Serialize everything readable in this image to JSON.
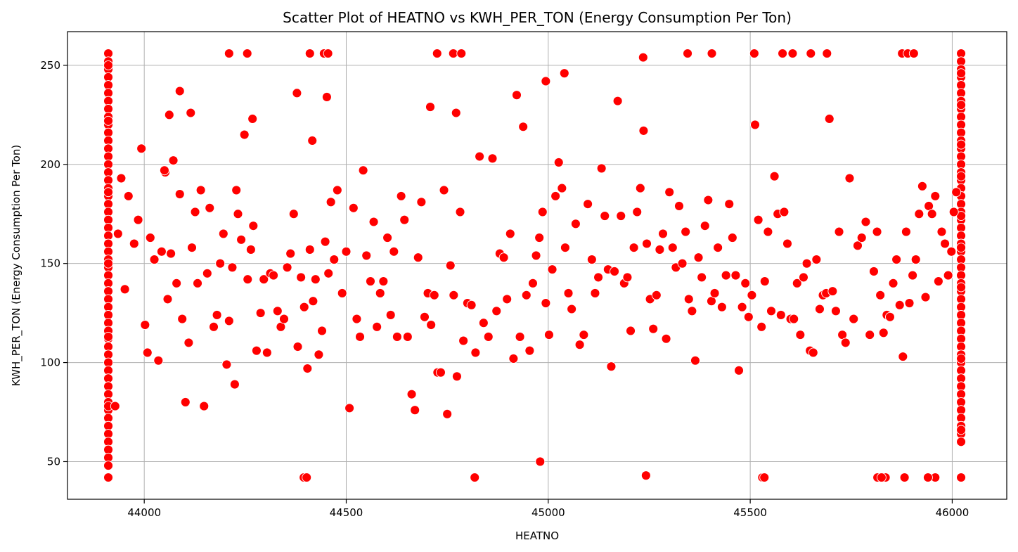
{
  "chart_data": {
    "type": "scatter",
    "title": "Scatter Plot of HEATNO vs KWH_PER_TON (Energy Consumption Per Ton)",
    "xlabel": "HEATNO",
    "ylabel": "KWH_PER_TON (Energy Consumption Per Ton)",
    "xlim": [
      43810,
      46135
    ],
    "ylim": [
      31,
      267
    ],
    "xticks": [
      44000,
      44500,
      45000,
      45500,
      46000
    ],
    "yticks": [
      50,
      100,
      150,
      200,
      250
    ],
    "grid": true,
    "legend": "none",
    "marker_color": "#ff0000",
    "marker_edge_color": "#ffffff",
    "series": [
      {
        "x": [
          43911,
          43911,
          43911,
          43911,
          43911,
          43911,
          43911,
          43911,
          43911,
          43911,
          43911,
          43911,
          43911,
          43911,
          43911,
          43911,
          43911,
          43911,
          43911,
          43911,
          43911,
          43911,
          43911,
          43911,
          43911,
          43911,
          43911,
          43911,
          43911,
          43911,
          43911,
          43911,
          43911,
          43911,
          43911,
          43911,
          43911,
          43911,
          43911,
          43911,
          43911,
          43911,
          43911,
          43911,
          43911,
          43911,
          43911,
          43911,
          43911,
          43911,
          43911,
          43911,
          43911,
          43911,
          43911,
          43911,
          43911,
          43911,
          43911,
          43911,
          46022,
          46022,
          46022,
          46022,
          46022,
          46022,
          46022,
          46022,
          46022,
          46022,
          46022,
          46022,
          46022,
          46022,
          46022,
          46022,
          46022,
          46022,
          46022,
          46022,
          46022,
          46022,
          46022,
          46022,
          46022,
          46022,
          46022,
          46022,
          46022,
          46022,
          46022,
          46022,
          46022,
          46022,
          46022,
          46022,
          46022,
          46022,
          46022,
          46022,
          46022,
          46022,
          46022,
          46022,
          46022,
          46022,
          46022,
          46022,
          46022,
          46022,
          46022,
          46022,
          46022,
          46022,
          46022,
          46022,
          46022,
          46022,
          46022,
          46022,
          43928,
          43935,
          43943,
          43952,
          43961,
          43975,
          43985,
          43993,
          44002,
          44008,
          44015,
          44025,
          44035,
          44043,
          44052,
          44058,
          44066,
          44072,
          44080,
          44088,
          44094,
          44102,
          44110,
          44118,
          44126,
          44132,
          44140,
          44148,
          44156,
          44162,
          44172,
          44180,
          44188,
          44196,
          44204,
          44210,
          44218,
          44224,
          44232,
          44240,
          44248,
          44256,
          44264,
          44270,
          44278,
          44288,
          44296,
          44304,
          44312,
          44320,
          44330,
          44338,
          44346,
          44354,
          44362,
          44370,
          44380,
          44388,
          44396,
          44404,
          44410,
          44418,
          44424,
          44432,
          44440,
          44448,
          44456,
          44462,
          44470,
          44478,
          44490,
          44500,
          44508,
          44518,
          44526,
          44534,
          44542,
          44550,
          44560,
          44568,
          44576,
          44584,
          44592,
          44602,
          44610,
          44618,
          44626,
          44636,
          44644,
          44652,
          44662,
          44670,
          44678,
          44686,
          44694,
          44702,
          44710,
          44718,
          44726,
          44734,
          44742,
          44750,
          44758,
          44766,
          44774,
          44782,
          44790,
          44800,
          44810,
          44820,
          44830,
          44840,
          44852,
          44862,
          44872,
          44880,
          44890,
          44898,
          44906,
          44914,
          44922,
          44930,
          44938,
          44946,
          44954,
          44962,
          44970,
          44978,
          44986,
          44994,
          45002,
          45010,
          45018,
          45026,
          45034,
          45042,
          45050,
          45058,
          45068,
          45078,
          45088,
          45098,
          45108,
          45116,
          45124,
          45132,
          45140,
          45148,
          45156,
          45164,
          45172,
          45180,
          45188,
          45196,
          45204,
          45212,
          45220,
          45228,
          45236,
          45244,
          45252,
          45260,
          45268,
          45276,
          45284,
          45292,
          45300,
          45308,
          45316,
          45324,
          45332,
          45340,
          45348,
          45356,
          45364,
          45372,
          45380,
          45388,
          45396,
          45404,
          45412,
          45420,
          45430,
          45440,
          45448,
          45456,
          45464,
          45472,
          45480,
          45488,
          45496,
          45504,
          45512,
          45520,
          45528,
          45536,
          45544,
          45552,
          45560,
          45568,
          45576,
          45584,
          45592,
          45600,
          45608,
          45616,
          45624,
          45632,
          45640,
          45648,
          45656,
          45664,
          45672,
          45680,
          45688,
          45696,
          45704,
          45712,
          45720,
          45728,
          45736,
          45746,
          45756,
          45766,
          45776,
          45786,
          45796,
          45806,
          45814,
          45822,
          45830,
          45838,
          45846,
          45854,
          45862,
          45870,
          45878,
          45886,
          45894,
          45902,
          45910,
          45918,
          45926,
          45934,
          45942,
          45950,
          45958,
          45966,
          45974,
          45982,
          45990,
          45998,
          46004,
          46010,
          45876,
          45890,
          45905,
          45940,
          45958,
          45835,
          45815,
          45580,
          45605,
          45650,
          45690,
          45530,
          45510,
          45405,
          45345,
          45235,
          44210,
          44255,
          44410,
          44445,
          44455,
          44725,
          44765,
          44785,
          44395,
          44402,
          44818,
          44980,
          45242,
          45535,
          45825,
          45882,
          45940,
          44088,
          44062,
          44050,
          44115,
          44228,
          44268,
          44378,
          44416,
          44452,
          44708,
          44772,
          44994,
          45040
        ],
        "y": [
          256,
          252,
          248,
          244,
          240,
          236,
          232,
          228,
          224,
          220,
          216,
          212,
          208,
          204,
          200,
          196,
          192,
          188,
          184,
          180,
          176,
          172,
          168,
          164,
          160,
          156,
          152,
          148,
          144,
          140,
          136,
          132,
          128,
          124,
          120,
          116,
          112,
          108,
          104,
          100,
          96,
          92,
          88,
          84,
          80,
          76,
          72,
          68,
          64,
          60,
          56,
          52,
          48,
          42,
          250,
          222,
          186,
          150,
          113,
          78,
          256,
          252,
          248,
          244,
          240,
          236,
          232,
          228,
          224,
          220,
          216,
          212,
          208,
          204,
          200,
          196,
          192,
          188,
          184,
          180,
          176,
          172,
          168,
          164,
          160,
          156,
          152,
          148,
          144,
          140,
          136,
          132,
          128,
          124,
          120,
          116,
          112,
          108,
          104,
          100,
          96,
          92,
          88,
          84,
          80,
          76,
          72,
          68,
          64,
          60,
          42,
          246,
          210,
          174,
          138,
          102,
          66,
          230,
          194,
          158,
          78,
          165,
          193,
          137,
          184,
          160,
          172,
          208,
          119,
          105,
          163,
          152,
          101,
          156,
          196,
          132,
          155,
          202,
          140,
          185,
          122,
          80,
          110,
          158,
          176,
          140,
          187,
          78,
          145,
          178,
          118,
          124,
          150,
          165,
          99,
          121,
          148,
          89,
          175,
          162,
          215,
          142,
          157,
          169,
          106,
          125,
          142,
          105,
          145,
          144,
          126,
          118,
          122,
          148,
          155,
          175,
          108,
          143,
          128,
          97,
          157,
          131,
          142,
          104,
          116,
          161,
          145,
          181,
          152,
          187,
          135,
          156,
          77,
          178,
          122,
          113,
          197,
          154,
          141,
          171,
          118,
          135,
          141,
          163,
          124,
          156,
          113,
          184,
          172,
          113,
          84,
          76,
          153,
          181,
          123,
          135,
          119,
          134,
          95,
          95,
          187,
          74,
          149,
          134,
          93,
          176,
          111,
          130,
          129,
          105,
          204,
          120,
          113,
          203,
          126,
          155,
          153,
          132,
          165,
          102,
          235,
          113,
          219,
          134,
          106,
          140,
          154,
          163,
          176,
          130,
          114,
          147,
          184,
          201,
          188,
          158,
          135,
          127,
          170,
          109,
          114,
          180,
          152,
          135,
          143,
          198,
          174,
          147,
          98,
          146,
          232,
          174,
          140,
          143,
          116,
          158,
          176,
          188,
          217,
          160,
          132,
          117,
          134,
          157,
          165,
          112,
          186,
          158,
          148,
          179,
          150,
          166,
          132,
          126,
          101,
          153,
          143,
          169,
          182,
          131,
          135,
          158,
          128,
          144,
          180,
          163,
          144,
          96,
          128,
          140,
          123,
          134,
          220,
          172,
          118,
          141,
          166,
          126,
          194,
          175,
          124,
          176,
          160,
          122,
          122,
          140,
          114,
          143,
          150,
          106,
          105,
          152,
          127,
          134,
          135,
          223,
          136,
          126,
          166,
          114,
          110,
          193,
          122,
          159,
          163,
          171,
          114,
          146,
          166,
          134,
          115,
          124,
          123,
          140,
          152,
          129,
          103,
          166,
          130,
          144,
          152,
          175,
          189,
          133,
          179,
          175,
          184,
          141,
          166,
          160,
          144,
          156,
          176,
          186,
          256,
          256,
          256,
          42,
          42,
          42,
          42,
          256,
          256,
          256,
          256,
          42,
          256,
          256,
          256,
          254,
          256,
          256,
          256,
          256,
          256,
          256,
          256,
          256,
          42,
          42,
          42,
          50,
          43,
          42,
          42,
          42,
          42,
          237,
          225,
          197,
          226,
          187,
          223,
          236,
          212,
          234,
          229,
          226,
          242,
          246
        ]
      }
    ]
  }
}
